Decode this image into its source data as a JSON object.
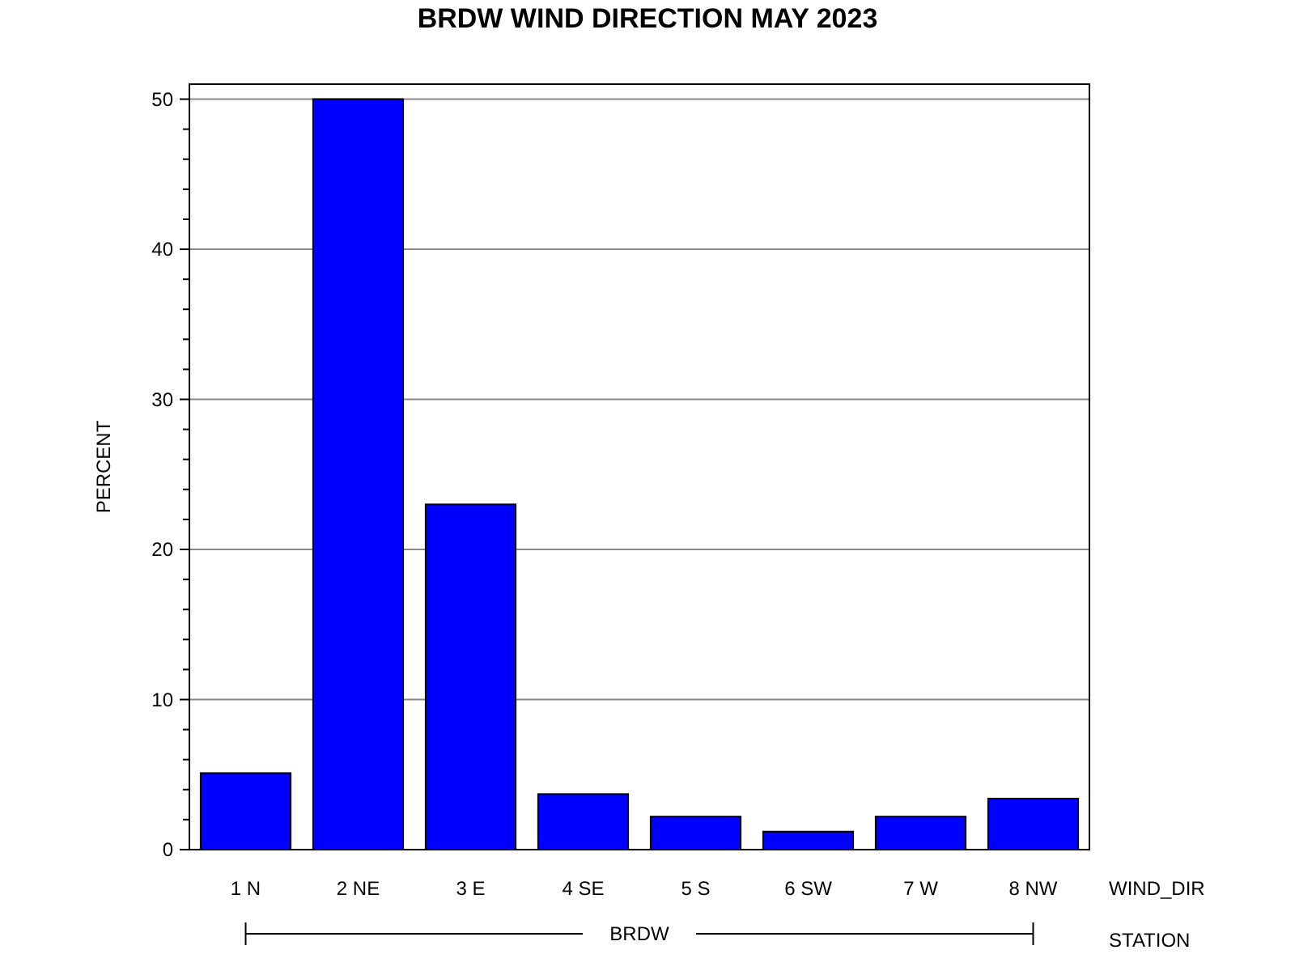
{
  "chart_data": {
    "type": "bar",
    "title": "BRDW WIND DIRECTION MAY 2023",
    "ylabel": "PERCENT",
    "xlabel": "WIND_DIR",
    "categories": [
      "1 N",
      "2 NE",
      "3 E",
      "4 SE",
      "5 S",
      "6 SW",
      "7 W",
      "8 NW"
    ],
    "values": [
      5.1,
      50,
      23.0,
      3.7,
      2.2,
      1.2,
      2.2,
      3.4
    ],
    "color": "#0000ff",
    "ylim": [
      0,
      51
    ],
    "yticks": [
      0,
      {
        "value": 2,
        "label": null
      },
      {
        "value": 4,
        "label": null
      },
      {
        "value": 6,
        "label": null
      },
      {
        "value": 8,
        "label": null
      },
      10,
      {
        "value": 12,
        "label": null
      },
      {
        "value": 14,
        "label": null
      },
      {
        "value": 16,
        "label": null
      },
      {
        "value": 18,
        "label": null
      },
      20,
      {
        "value": 22,
        "label": null
      },
      {
        "value": 24,
        "label": null
      },
      {
        "value": 26,
        "label": null
      },
      {
        "value": 28,
        "label": null
      },
      30,
      {
        "value": 32,
        "label": null
      },
      {
        "value": 34,
        "label": null
      },
      {
        "value": 36,
        "label": null
      },
      {
        "value": 38,
        "label": null
      },
      40,
      {
        "value": 42,
        "label": null
      },
      {
        "value": 44,
        "label": null
      },
      {
        "value": 46,
        "label": null
      },
      {
        "value": 48,
        "label": null
      },
      50
    ],
    "grid": "y",
    "annotations": [
      "BRDW",
      "STATION"
    ]
  }
}
